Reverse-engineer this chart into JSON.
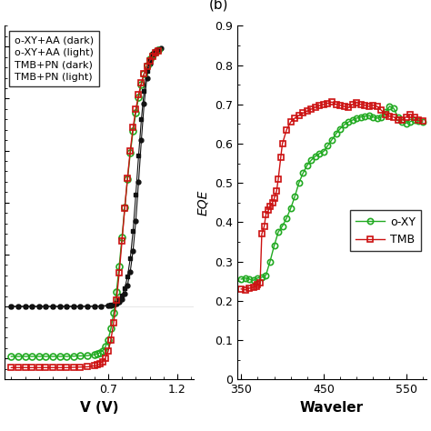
{
  "panel_a": {
    "xlabel": "V (V)",
    "ylabel": "",
    "xlim": [
      -0.05,
      1.32
    ],
    "ylim": [
      -0.28,
      1.08
    ],
    "xticks": [
      0.7,
      1.2
    ],
    "legend_labels": [
      "o-XY+AA (dark)",
      "o-XY+AA (light)",
      "TMB+PN (dark)",
      "TMB+PN (light)"
    ],
    "oxy_dark_x": [
      0.0,
      0.05,
      0.1,
      0.15,
      0.2,
      0.25,
      0.3,
      0.35,
      0.4,
      0.45,
      0.5,
      0.55,
      0.6,
      0.65,
      0.7,
      0.72,
      0.74,
      0.76,
      0.78,
      0.8,
      0.82,
      0.84,
      0.86,
      0.88,
      0.9,
      0.92,
      0.94,
      0.96,
      0.98,
      1.0,
      1.02,
      1.04,
      1.06,
      1.08
    ],
    "oxy_dark_y": [
      0.0003,
      0.0003,
      0.0003,
      0.0003,
      0.0003,
      0.0003,
      0.0003,
      0.0003,
      0.0004,
      0.0005,
      0.0006,
      0.0008,
      0.001,
      0.0015,
      0.003,
      0.004,
      0.006,
      0.01,
      0.018,
      0.03,
      0.05,
      0.082,
      0.135,
      0.215,
      0.33,
      0.48,
      0.64,
      0.78,
      0.88,
      0.935,
      0.962,
      0.978,
      0.988,
      0.994
    ],
    "oxy_light_x": [
      0.0,
      0.05,
      0.1,
      0.15,
      0.2,
      0.25,
      0.3,
      0.35,
      0.4,
      0.45,
      0.5,
      0.55,
      0.6,
      0.62,
      0.64,
      0.66,
      0.68,
      0.7,
      0.72,
      0.74,
      0.76,
      0.78,
      0.8,
      0.82,
      0.84,
      0.86,
      0.88,
      0.9,
      0.92,
      0.94,
      0.96,
      0.98,
      1.0,
      1.02,
      1.04,
      1.06
    ],
    "oxy_light_y": [
      -0.192,
      -0.192,
      -0.192,
      -0.192,
      -0.192,
      -0.192,
      -0.192,
      -0.192,
      -0.192,
      -0.191,
      -0.19,
      -0.189,
      -0.185,
      -0.182,
      -0.178,
      -0.17,
      -0.155,
      -0.128,
      -0.085,
      -0.025,
      0.055,
      0.155,
      0.265,
      0.38,
      0.49,
      0.59,
      0.675,
      0.745,
      0.805,
      0.855,
      0.895,
      0.928,
      0.952,
      0.968,
      0.98,
      0.988
    ],
    "tmb_dark_x": [
      0.0,
      0.05,
      0.1,
      0.15,
      0.2,
      0.25,
      0.3,
      0.35,
      0.4,
      0.45,
      0.5,
      0.55,
      0.6,
      0.65,
      0.7,
      0.72,
      0.74,
      0.76,
      0.78,
      0.8,
      0.82,
      0.84,
      0.86,
      0.88,
      0.9,
      0.92,
      0.94,
      0.96,
      0.98,
      1.0,
      1.02,
      1.04,
      1.06
    ],
    "tmb_dark_y": [
      0.0003,
      0.0003,
      0.0003,
      0.0003,
      0.0003,
      0.0003,
      0.0003,
      0.0003,
      0.0004,
      0.0005,
      0.0007,
      0.001,
      0.0014,
      0.002,
      0.004,
      0.006,
      0.009,
      0.015,
      0.025,
      0.042,
      0.07,
      0.115,
      0.185,
      0.29,
      0.43,
      0.58,
      0.72,
      0.83,
      0.905,
      0.95,
      0.972,
      0.984,
      0.992
    ],
    "tmb_light_x": [
      0.0,
      0.05,
      0.1,
      0.15,
      0.2,
      0.25,
      0.3,
      0.35,
      0.4,
      0.45,
      0.5,
      0.55,
      0.6,
      0.62,
      0.64,
      0.66,
      0.68,
      0.7,
      0.72,
      0.74,
      0.76,
      0.78,
      0.8,
      0.82,
      0.84,
      0.86,
      0.88,
      0.9,
      0.92,
      0.94,
      0.96,
      0.98,
      1.0,
      1.02,
      1.04,
      1.06
    ],
    "tmb_light_y": [
      -0.235,
      -0.235,
      -0.235,
      -0.235,
      -0.235,
      -0.235,
      -0.235,
      -0.235,
      -0.235,
      -0.234,
      -0.233,
      -0.232,
      -0.228,
      -0.225,
      -0.22,
      -0.212,
      -0.198,
      -0.172,
      -0.128,
      -0.062,
      0.025,
      0.13,
      0.252,
      0.378,
      0.495,
      0.6,
      0.688,
      0.758,
      0.815,
      0.86,
      0.896,
      0.924,
      0.946,
      0.963,
      0.975,
      0.984
    ]
  },
  "panel_b": {
    "title": "(b)",
    "xlabel": "Waveler",
    "ylabel": "EQE",
    "xlim": [
      345,
      575
    ],
    "ylim": [
      0,
      0.9
    ],
    "xticks": [
      350,
      450,
      550
    ],
    "yticks": [
      0,
      0.1,
      0.2,
      0.3,
      0.4,
      0.5,
      0.6,
      0.7,
      0.8,
      0.9
    ],
    "legend_labels": [
      "o-XY",
      "TMB"
    ],
    "oxy_x": [
      350,
      355,
      360,
      365,
      370,
      375,
      380,
      385,
      390,
      395,
      400,
      405,
      410,
      415,
      420,
      425,
      430,
      435,
      440,
      445,
      450,
      455,
      460,
      465,
      470,
      475,
      480,
      485,
      490,
      495,
      500,
      505,
      510,
      515,
      520,
      525,
      530,
      535,
      540,
      545,
      550,
      555,
      560,
      565,
      570
    ],
    "oxy_y": [
      0.255,
      0.258,
      0.255,
      0.252,
      0.258,
      0.26,
      0.265,
      0.3,
      0.34,
      0.375,
      0.39,
      0.41,
      0.435,
      0.465,
      0.5,
      0.525,
      0.545,
      0.558,
      0.568,
      0.575,
      0.58,
      0.595,
      0.61,
      0.625,
      0.638,
      0.648,
      0.655,
      0.66,
      0.665,
      0.668,
      0.67,
      0.672,
      0.668,
      0.665,
      0.668,
      0.68,
      0.695,
      0.69,
      0.668,
      0.655,
      0.652,
      0.656,
      0.66,
      0.658,
      0.655
    ],
    "tmb_x": [
      350,
      355,
      360,
      365,
      368,
      370,
      373,
      375,
      378,
      380,
      383,
      385,
      388,
      390,
      393,
      395,
      398,
      400,
      405,
      410,
      415,
      420,
      425,
      430,
      435,
      440,
      445,
      450,
      455,
      460,
      465,
      470,
      475,
      480,
      485,
      490,
      495,
      500,
      505,
      510,
      515,
      520,
      525,
      530,
      535,
      540,
      545,
      550,
      555,
      560,
      565,
      570
    ],
    "tmb_y": [
      0.23,
      0.228,
      0.232,
      0.235,
      0.237,
      0.24,
      0.245,
      0.37,
      0.39,
      0.42,
      0.43,
      0.44,
      0.45,
      0.46,
      0.48,
      0.51,
      0.565,
      0.6,
      0.635,
      0.655,
      0.665,
      0.672,
      0.678,
      0.683,
      0.688,
      0.693,
      0.697,
      0.7,
      0.703,
      0.706,
      0.7,
      0.698,
      0.695,
      0.692,
      0.7,
      0.705,
      0.7,
      0.698,
      0.695,
      0.698,
      0.695,
      0.685,
      0.675,
      0.67,
      0.668,
      0.66,
      0.66,
      0.668,
      0.675,
      0.668,
      0.66,
      0.658
    ]
  },
  "colors": {
    "green": "#22aa22",
    "red": "#cc1111",
    "black": "#111111"
  },
  "fig_width": 4.74,
  "fig_height": 4.74,
  "dpi": 100
}
